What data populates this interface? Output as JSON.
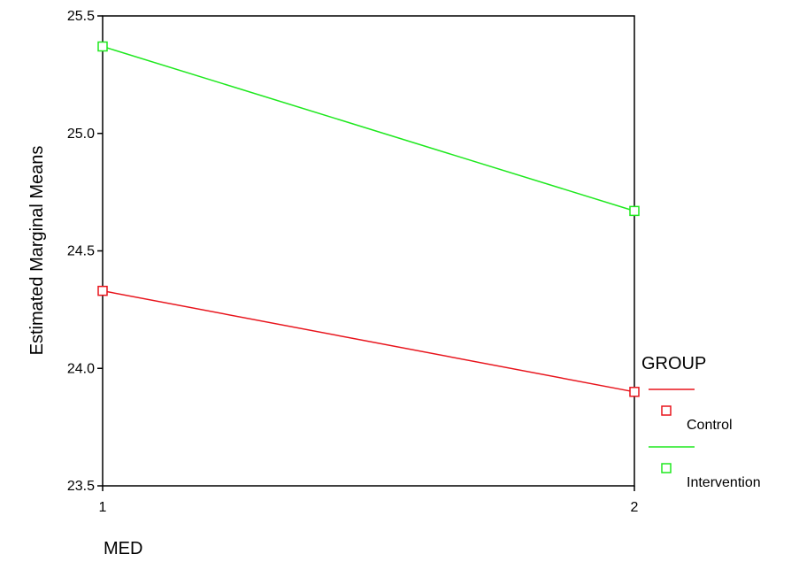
{
  "chart_data": {
    "type": "line",
    "title": "",
    "xlabel": "MED",
    "ylabel": "Estimated Marginal Means",
    "x": [
      1,
      2
    ],
    "xticks": [
      "1",
      "2"
    ],
    "ylim": [
      23.5,
      25.5
    ],
    "yticks": [
      "23.5",
      "24.0",
      "24.5",
      "25.0",
      "25.5"
    ],
    "grid": false,
    "legend": {
      "title": "GROUP",
      "placement": "right"
    },
    "series": [
      {
        "name": "Control",
        "color": "#e8141c",
        "values": [
          24.33,
          23.9
        ],
        "marker": "square"
      },
      {
        "name": "Intervention",
        "color": "#1ee81e",
        "values": [
          25.37,
          24.67
        ],
        "marker": "square"
      }
    ]
  }
}
